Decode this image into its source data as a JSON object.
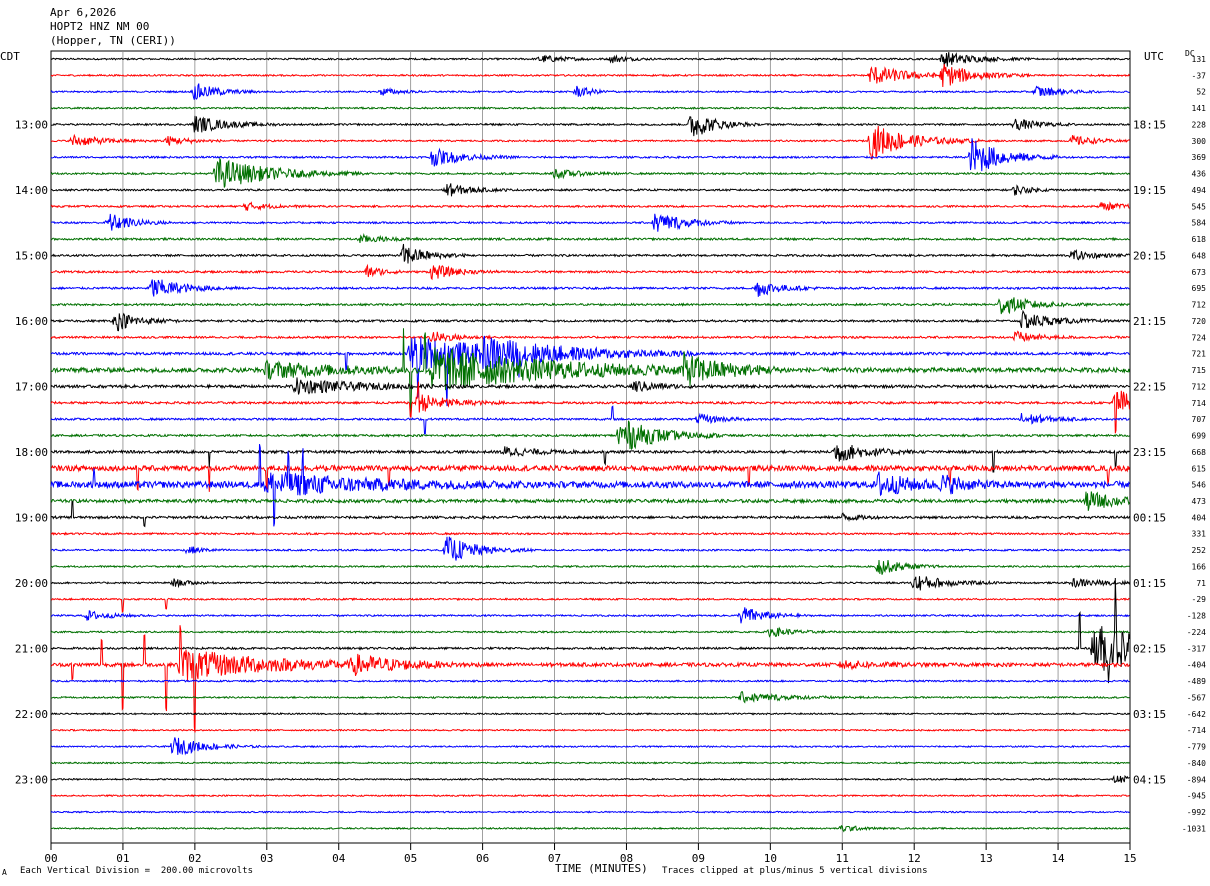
{
  "header": {
    "date": "Apr 6,2026",
    "station": "HOPT2 HNZ NM 00",
    "location": "(Hopper, TN (CERI))"
  },
  "left_tz": "CDT",
  "right_tz": "UTC",
  "dc_label": "DC",
  "footer": {
    "scale_note": "Each Vertical Division =  200.00 microvolts",
    "xlabel": "TIME (MINUTES)",
    "clip_note": "Traces clipped at plus/minus 5 vertical divisions",
    "logo": "A"
  },
  "colors": {
    "trace_cycle": [
      "#000000",
      "#ff0000",
      "#0000ff",
      "#007000"
    ],
    "grid": "#888888"
  },
  "chart_data": {
    "type": "line",
    "title": "",
    "xlabel": "TIME (MINUTES)",
    "xlim": [
      0,
      15
    ],
    "x_ticks": [
      "00",
      "01",
      "02",
      "03",
      "04",
      "05",
      "06",
      "07",
      "08",
      "09",
      "10",
      "11",
      "12",
      "13",
      "14",
      "15"
    ],
    "traces_per_hour": 4,
    "left_hour_labels": [
      {
        "row": 4,
        "label": "13:00"
      },
      {
        "row": 8,
        "label": "14:00"
      },
      {
        "row": 12,
        "label": "15:00"
      },
      {
        "row": 16,
        "label": "16:00"
      },
      {
        "row": 20,
        "label": "17:00"
      },
      {
        "row": 24,
        "label": "18:00"
      },
      {
        "row": 28,
        "label": "19:00"
      },
      {
        "row": 32,
        "label": "20:00"
      },
      {
        "row": 36,
        "label": "21:00"
      },
      {
        "row": 40,
        "label": "22:00"
      },
      {
        "row": 44,
        "label": "23:00"
      }
    ],
    "right_hour_labels": [
      {
        "row": 4,
        "label": "18:15"
      },
      {
        "row": 8,
        "label": "19:15"
      },
      {
        "row": 12,
        "label": "20:15"
      },
      {
        "row": 16,
        "label": "21:15"
      },
      {
        "row": 20,
        "label": "22:15"
      },
      {
        "row": 24,
        "label": "23:15"
      },
      {
        "row": 28,
        "label": "00:15"
      },
      {
        "row": 32,
        "label": "01:15"
      },
      {
        "row": 36,
        "label": "02:15"
      },
      {
        "row": 40,
        "label": "03:15"
      },
      {
        "row": 44,
        "label": "04:15"
      }
    ],
    "dc_offsets": [
      "131",
      "-37",
      "52",
      "141",
      "228",
      "300",
      "369",
      "436",
      "494",
      "545",
      "584",
      "618",
      "648",
      "673",
      "695",
      "712",
      "720",
      "724",
      "721",
      "715",
      "712",
      "714",
      "707",
      "699",
      "668",
      "615",
      "546",
      "473",
      "404",
      "331",
      "252",
      "166",
      "71",
      "-29",
      "-128",
      "-224",
      "-317",
      "-404",
      "-489",
      "-567",
      "-642",
      "-714",
      "-779",
      "-840",
      "-894",
      "-945",
      "-992",
      "-1031"
    ],
    "trace_noise": [
      0.8,
      0.8,
      0.8,
      0.8,
      0.9,
      0.8,
      0.9,
      0.9,
      0.9,
      0.9,
      0.9,
      1.0,
      1.0,
      1.0,
      1.0,
      1.0,
      1.0,
      1.0,
      1.3,
      2.2,
      1.4,
      1.1,
      1.0,
      1.0,
      1.3,
      2.6,
      3.2,
      1.6,
      1.2,
      0.9,
      0.8,
      0.8,
      0.8,
      0.8,
      0.8,
      0.8,
      1.0,
      1.8,
      0.8,
      0.8,
      0.7,
      0.7,
      0.7,
      0.7,
      0.7,
      0.7,
      0.7,
      0.7
    ],
    "events": [
      {
        "row": 0,
        "minute": 6.8,
        "amp": 4,
        "dur": 0.3
      },
      {
        "row": 0,
        "minute": 7.8,
        "amp": 4,
        "dur": 0.2
      },
      {
        "row": 0,
        "minute": 12.4,
        "amp": 8,
        "dur": 0.4
      },
      {
        "row": 1,
        "minute": 11.4,
        "amp": 10,
        "dur": 0.5
      },
      {
        "row": 1,
        "minute": 12.4,
        "amp": 11,
        "dur": 0.4
      },
      {
        "row": 2,
        "minute": 2.0,
        "amp": 9,
        "dur": 0.3
      },
      {
        "row": 2,
        "minute": 4.6,
        "amp": 4,
        "dur": 0.2
      },
      {
        "row": 2,
        "minute": 7.3,
        "amp": 6,
        "dur": 0.2
      },
      {
        "row": 2,
        "minute": 13.7,
        "amp": 6,
        "dur": 0.3
      },
      {
        "row": 4,
        "minute": 2.0,
        "amp": 9,
        "dur": 0.4
      },
      {
        "row": 4,
        "minute": 8.9,
        "amp": 15,
        "dur": 0.3
      },
      {
        "row": 4,
        "minute": 13.4,
        "amp": 6,
        "dur": 0.3
      },
      {
        "row": 5,
        "minute": 0.3,
        "amp": 6,
        "dur": 0.4
      },
      {
        "row": 5,
        "minute": 1.6,
        "amp": 5,
        "dur": 0.3
      },
      {
        "row": 5,
        "minute": 11.4,
        "amp": 18,
        "dur": 0.5
      },
      {
        "row": 5,
        "minute": 14.2,
        "amp": 5,
        "dur": 0.3
      },
      {
        "row": 6,
        "minute": 5.3,
        "amp": 9,
        "dur": 0.4
      },
      {
        "row": 6,
        "minute": 12.8,
        "amp": 20,
        "dur": 0.4
      },
      {
        "row": 7,
        "minute": 2.3,
        "amp": 16,
        "dur": 0.7
      },
      {
        "row": 7,
        "minute": 7.0,
        "amp": 5,
        "dur": 0.3
      },
      {
        "row": 8,
        "minute": 5.5,
        "amp": 7,
        "dur": 0.3
      },
      {
        "row": 8,
        "minute": 13.4,
        "amp": 5,
        "dur": 0.2
      },
      {
        "row": 9,
        "minute": 2.7,
        "amp": 4,
        "dur": 0.3
      },
      {
        "row": 9,
        "minute": 14.6,
        "amp": 4,
        "dur": 0.3
      },
      {
        "row": 10,
        "minute": 0.8,
        "amp": 10,
        "dur": 0.3
      },
      {
        "row": 10,
        "minute": 8.4,
        "amp": 11,
        "dur": 0.4
      },
      {
        "row": 11,
        "minute": 4.3,
        "amp": 4,
        "dur": 0.3
      },
      {
        "row": 12,
        "minute": 4.9,
        "amp": 11,
        "dur": 0.3
      },
      {
        "row": 12,
        "minute": 14.2,
        "amp": 5,
        "dur": 0.3
      },
      {
        "row": 13,
        "minute": 4.4,
        "amp": 6,
        "dur": 0.2
      },
      {
        "row": 13,
        "minute": 5.3,
        "amp": 8,
        "dur": 0.3
      },
      {
        "row": 14,
        "minute": 1.4,
        "amp": 11,
        "dur": 0.4
      },
      {
        "row": 14,
        "minute": 9.8,
        "amp": 9,
        "dur": 0.3
      },
      {
        "row": 15,
        "minute": 13.2,
        "amp": 10,
        "dur": 0.4
      },
      {
        "row": 16,
        "minute": 0.9,
        "amp": 10,
        "dur": 0.3
      },
      {
        "row": 16,
        "minute": 13.5,
        "amp": 9,
        "dur": 0.4
      },
      {
        "row": 17,
        "minute": 5.3,
        "amp": 6,
        "dur": 0.3
      },
      {
        "row": 17,
        "minute": 13.4,
        "amp": 6,
        "dur": 0.3
      },
      {
        "row": 18,
        "minute": 5.0,
        "amp": 18,
        "dur": 1.3
      },
      {
        "row": 18,
        "minute": 6.0,
        "amp": 10,
        "dur": 1.0
      },
      {
        "row": 19,
        "minute": 5.3,
        "amp": 22,
        "dur": 1.6
      },
      {
        "row": 19,
        "minute": 8.8,
        "amp": 14,
        "dur": 0.5
      },
      {
        "row": 19,
        "minute": 3.0,
        "amp": 8,
        "dur": 1.0
      },
      {
        "row": 20,
        "minute": 3.4,
        "amp": 8,
        "dur": 0.8
      },
      {
        "row": 20,
        "minute": 8.1,
        "amp": 6,
        "dur": 0.3
      },
      {
        "row": 21,
        "minute": 5.1,
        "amp": 10,
        "dur": 0.4
      },
      {
        "row": 21,
        "minute": 14.8,
        "amp": 16,
        "dur": 0.3
      },
      {
        "row": 22,
        "minute": 13.5,
        "amp": 7,
        "dur": 0.3
      },
      {
        "row": 22,
        "minute": 9.0,
        "amp": 5,
        "dur": 0.3
      },
      {
        "row": 23,
        "minute": 7.9,
        "amp": 18,
        "dur": 0.5
      },
      {
        "row": 24,
        "minute": 10.9,
        "amp": 11,
        "dur": 0.4
      },
      {
        "row": 24,
        "minute": 6.3,
        "amp": 5,
        "dur": 0.4
      },
      {
        "row": 26,
        "minute": 3.0,
        "amp": 12,
        "dur": 1.2
      },
      {
        "row": 26,
        "minute": 11.5,
        "amp": 12,
        "dur": 0.4
      },
      {
        "row": 26,
        "minute": 12.4,
        "amp": 8,
        "dur": 0.3
      },
      {
        "row": 27,
        "minute": 14.4,
        "amp": 10,
        "dur": 0.4
      },
      {
        "row": 28,
        "minute": 11.0,
        "amp": 4,
        "dur": 0.2
      },
      {
        "row": 30,
        "minute": 5.5,
        "amp": 14,
        "dur": 0.4
      },
      {
        "row": 30,
        "minute": 1.9,
        "amp": 4,
        "dur": 0.2
      },
      {
        "row": 31,
        "minute": 11.5,
        "amp": 9,
        "dur": 0.3
      },
      {
        "row": 32,
        "minute": 12.0,
        "amp": 9,
        "dur": 0.4
      },
      {
        "row": 32,
        "minute": 1.7,
        "amp": 4,
        "dur": 0.2
      },
      {
        "row": 32,
        "minute": 14.2,
        "amp": 4,
        "dur": 0.5
      },
      {
        "row": 34,
        "minute": 9.6,
        "amp": 10,
        "dur": 0.3
      },
      {
        "row": 34,
        "minute": 0.5,
        "amp": 5,
        "dur": 0.3
      },
      {
        "row": 35,
        "minute": 10.0,
        "amp": 5,
        "dur": 0.3
      },
      {
        "row": 36,
        "minute": 14.5,
        "amp": 26,
        "dur": 1.0
      },
      {
        "row": 37,
        "minute": 1.8,
        "amp": 16,
        "dur": 1.2
      },
      {
        "row": 37,
        "minute": 4.2,
        "amp": 8,
        "dur": 0.6
      },
      {
        "row": 37,
        "minute": 11.0,
        "amp": 4,
        "dur": 0.4
      },
      {
        "row": 39,
        "minute": 9.6,
        "amp": 5,
        "dur": 0.6
      },
      {
        "row": 42,
        "minute": 1.7,
        "amp": 10,
        "dur": 0.4
      },
      {
        "row": 44,
        "minute": 14.8,
        "amp": 4,
        "dur": 0.3
      },
      {
        "row": 47,
        "minute": 11.0,
        "amp": 4,
        "dur": 0.2
      }
    ],
    "spikes": [
      {
        "row": 18,
        "minute": 5.1,
        "amp": -30
      },
      {
        "row": 18,
        "minute": 5.5,
        "amp": -40
      },
      {
        "row": 18,
        "minute": 6.5,
        "amp": -20
      },
      {
        "row": 18,
        "minute": 4.1,
        "amp": -15
      },
      {
        "row": 19,
        "minute": 5.0,
        "amp": -45
      },
      {
        "row": 19,
        "minute": 5.2,
        "amp": 35
      },
      {
        "row": 19,
        "minute": 4.9,
        "amp": 40
      },
      {
        "row": 21,
        "minute": 5.0,
        "amp": -15
      },
      {
        "row": 21,
        "minute": 5.1,
        "amp": 20
      },
      {
        "row": 21,
        "minute": 14.8,
        "amp": -30
      },
      {
        "row": 22,
        "minute": 5.2,
        "amp": -15
      },
      {
        "row": 22,
        "minute": 7.8,
        "amp": 12
      },
      {
        "row": 24,
        "minute": 2.2,
        "amp": -15
      },
      {
        "row": 24,
        "minute": 7.7,
        "amp": -12
      },
      {
        "row": 24,
        "minute": 13.1,
        "amp": -20
      },
      {
        "row": 24,
        "minute": 14.8,
        "amp": -15
      },
      {
        "row": 25,
        "minute": 1.2,
        "amp": -20
      },
      {
        "row": 25,
        "minute": 2.2,
        "amp": -25
      },
      {
        "row": 25,
        "minute": 3.0,
        "amp": -20
      },
      {
        "row": 25,
        "minute": 4.7,
        "amp": -18
      },
      {
        "row": 25,
        "minute": 9.7,
        "amp": -15
      },
      {
        "row": 25,
        "minute": 12.5,
        "amp": -15
      },
      {
        "row": 25,
        "minute": 14.7,
        "amp": -16
      },
      {
        "row": 26,
        "minute": 2.9,
        "amp": 40
      },
      {
        "row": 26,
        "minute": 3.3,
        "amp": 35
      },
      {
        "row": 26,
        "minute": 3.5,
        "amp": 30
      },
      {
        "row": 26,
        "minute": 3.1,
        "amp": -30
      },
      {
        "row": 26,
        "minute": 0.6,
        "amp": 15
      },
      {
        "row": 28,
        "minute": 0.3,
        "amp": 15
      },
      {
        "row": 28,
        "minute": 1.3,
        "amp": -8
      },
      {
        "row": 33,
        "minute": 1.0,
        "amp": -12
      },
      {
        "row": 33,
        "minute": 1.6,
        "amp": -10
      },
      {
        "row": 36,
        "minute": 14.3,
        "amp": 35
      },
      {
        "row": 36,
        "minute": 14.8,
        "amp": 60
      },
      {
        "row": 36,
        "minute": 14.7,
        "amp": -30
      },
      {
        "row": 37,
        "minute": 1.0,
        "amp": -45
      },
      {
        "row": 37,
        "minute": 1.3,
        "amp": 30
      },
      {
        "row": 37,
        "minute": 1.6,
        "amp": -45
      },
      {
        "row": 37,
        "minute": 1.8,
        "amp": 40
      },
      {
        "row": 37,
        "minute": 2.0,
        "amp": -55
      },
      {
        "row": 37,
        "minute": 0.7,
        "amp": 25
      },
      {
        "row": 37,
        "minute": 0.3,
        "amp": -15
      }
    ]
  }
}
